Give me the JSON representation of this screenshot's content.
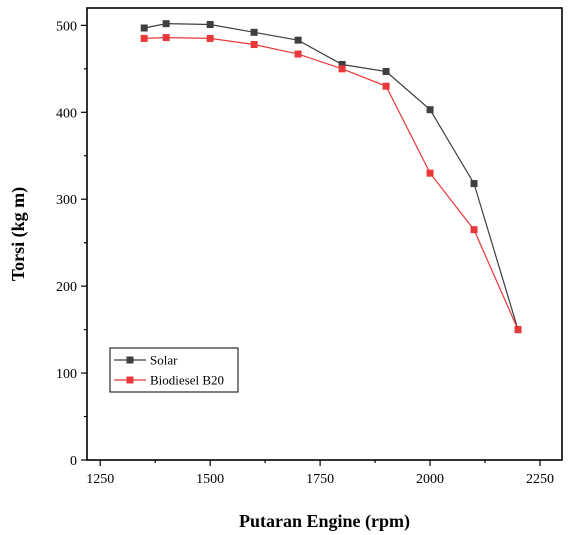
{
  "chart_data": {
    "type": "line",
    "xlabel": "Putaran Engine (rpm)",
    "ylabel": "Torsi (kg m)",
    "xlim": [
      1220,
      2300
    ],
    "ylim": [
      0,
      520
    ],
    "x_ticks": [
      1250,
      1500,
      1750,
      2000,
      2250
    ],
    "y_ticks": [
      0,
      100,
      200,
      300,
      400,
      500
    ],
    "grid": false,
    "legend_position": "bottom-left",
    "series": [
      {
        "name": "Solar",
        "color": "#3f3f3f",
        "marker": "square",
        "x": [
          1350,
          1400,
          1500,
          1600,
          1700,
          1800,
          1900,
          2000,
          2100,
          2200
        ],
        "y": [
          497,
          502,
          501,
          492,
          483,
          455,
          447,
          403,
          318,
          150
        ]
      },
      {
        "name": "Biodiesel B20",
        "color": "#e8383a",
        "marker": "square",
        "x": [
          1350,
          1400,
          1500,
          1600,
          1700,
          1800,
          1900,
          2000,
          2100,
          2200
        ],
        "y": [
          485,
          486,
          485,
          478,
          467,
          450,
          430,
          330,
          265,
          150
        ]
      }
    ]
  }
}
